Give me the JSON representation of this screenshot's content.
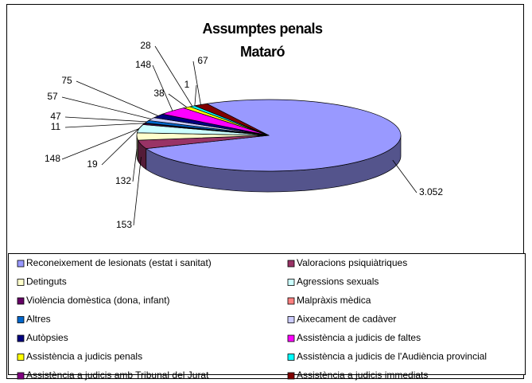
{
  "chart_data": {
    "type": "pie",
    "title": "Assumptes penals",
    "subtitle": "Mataró",
    "categories": [
      "Reconeixement de lesionats (estat i sanitat)",
      "Valoracions psiquiàtriques",
      "Detinguts",
      "Agressions sexuals",
      "Violència domèstica (dona, infant)",
      "Malpràxis mèdica",
      "Altres",
      "Aixecament de cadàver",
      "Autòpsies",
      "Assistència a judicis de faltes",
      "Assistència a judicis penals",
      "Assistència a judicis de l'Audiència provincial",
      "Assistència a judicis amb Tribunal del Jurat",
      "Assistència a judicis immediats"
    ],
    "values": [
      3052,
      153,
      132,
      148,
      19,
      11,
      47,
      57,
      75,
      148,
      38,
      28,
      1,
      67
    ],
    "value_labels": [
      "3.052",
      "153",
      "132",
      "148",
      "19",
      "11",
      "47",
      "57",
      "75",
      "148",
      "38",
      "28",
      "1",
      "67"
    ],
    "colors": [
      "#9999FF",
      "#993366",
      "#FFFFCC",
      "#CCFFFF",
      "#660066",
      "#FF8080",
      "#0066CC",
      "#CCCCFF",
      "#000080",
      "#FF00FF",
      "#FFFF00",
      "#00FFFF",
      "#800080",
      "#800000"
    ],
    "legend": "bottom"
  }
}
